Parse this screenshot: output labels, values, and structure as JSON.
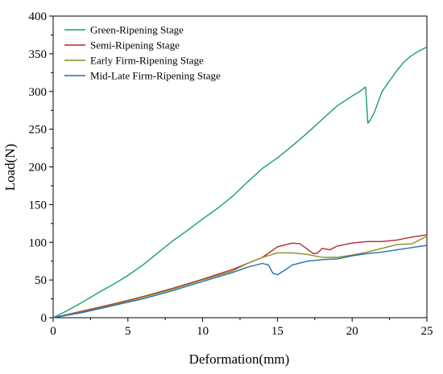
{
  "chart_data": {
    "type": "line",
    "title": "",
    "xlabel": "Deformation(mm)",
    "ylabel": "Load(N)",
    "xlim": [
      0,
      25
    ],
    "ylim": [
      0,
      400
    ],
    "xticks": [
      0,
      5,
      10,
      15,
      20,
      25
    ],
    "yticks": [
      0,
      50,
      100,
      150,
      200,
      250,
      300,
      350,
      400
    ],
    "grid": false,
    "legend_position": "top-left",
    "series": [
      {
        "name": "Green-Ripening Stage",
        "color": "#1a9e6e",
        "x": [
          0,
          1,
          2,
          3,
          4,
          5,
          6,
          7,
          8,
          9,
          10,
          11,
          12,
          13,
          14,
          15,
          16,
          17,
          18,
          19,
          20,
          20.5,
          20.9,
          21.05,
          21.2,
          21.5,
          22,
          22.5,
          23,
          23.5,
          24,
          24.5,
          25
        ],
        "y": [
          0,
          10,
          21,
          33,
          44,
          56,
          70,
          86,
          102,
          116,
          131,
          145,
          161,
          180,
          198,
          212,
          228,
          245,
          263,
          281,
          294,
          300,
          306,
          258,
          262,
          273,
          300,
          314,
          328,
          340,
          348,
          354,
          359
        ]
      },
      {
        "name": "Semi-Ripening Stage",
        "color": "#b8272d",
        "x": [
          0,
          2,
          4,
          6,
          8,
          10,
          12,
          14,
          15,
          16,
          16.5,
          17,
          17.4,
          17.7,
          18,
          18.5,
          19,
          20,
          21,
          22,
          23,
          24,
          25
        ],
        "y": [
          0,
          9,
          18,
          28,
          39,
          51,
          64,
          80,
          94,
          99,
          98,
          91,
          85,
          86,
          92,
          90,
          95,
          99,
          101,
          101,
          103,
          107,
          110
        ]
      },
      {
        "name": "Early Firm-Ripening Stage",
        "color": "#8c8c1f",
        "x": [
          0,
          2,
          4,
          6,
          8,
          10,
          12,
          13,
          14,
          15,
          16,
          17,
          18,
          19,
          20,
          21,
          22,
          23,
          24,
          25
        ],
        "y": [
          0,
          8,
          17,
          27,
          38,
          50,
          62,
          72,
          80,
          86,
          86,
          84,
          80,
          80,
          83,
          87,
          92,
          97,
          98,
          108
        ]
      },
      {
        "name": "Mid-Late Firm-Ripening Stage",
        "color": "#1f6fb5",
        "x": [
          0,
          2,
          4,
          6,
          8,
          10,
          12,
          13,
          14,
          14.4,
          14.7,
          15,
          15.5,
          16,
          17,
          18,
          19,
          20,
          21,
          22,
          23,
          24,
          25
        ],
        "y": [
          0,
          7,
          16,
          25,
          36,
          48,
          60,
          67,
          72,
          70,
          59,
          57,
          63,
          70,
          75,
          77,
          78,
          82,
          85,
          87,
          90,
          93,
          96
        ]
      }
    ]
  }
}
